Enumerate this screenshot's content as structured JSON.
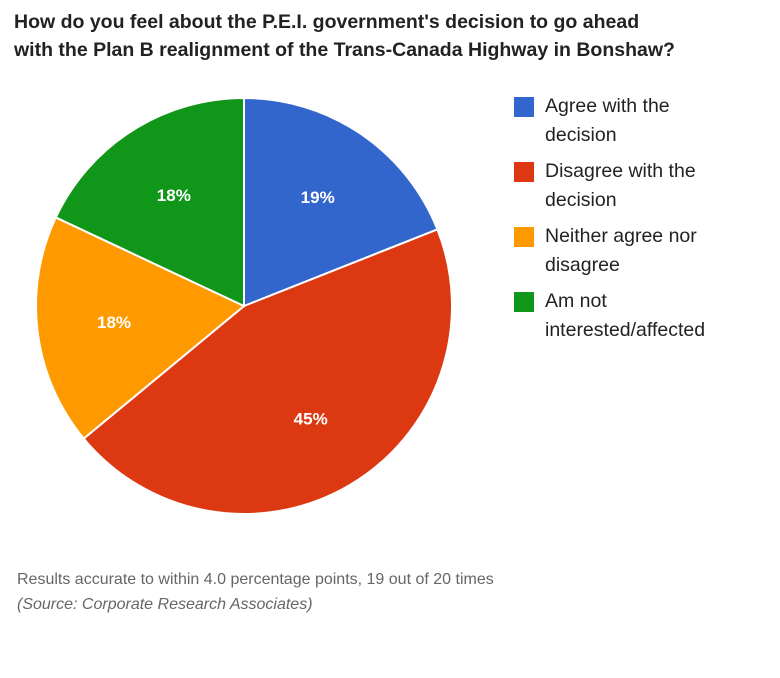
{
  "title_lines": [
    "How do you feel about the P.E.I. government's decision to go ahead",
    "with the Plan B realignment of the Trans-Canada Highway in Bonshaw?"
  ],
  "chart_data": {
    "type": "pie",
    "title": "How do you feel about the P.E.I. government's decision to go ahead with the Plan B realignment of the Trans-Canada Highway in Bonshaw?",
    "slices": [
      {
        "label": "Agree with the decision",
        "legend_lines": [
          "Agree with the",
          "decision"
        ],
        "value": 19,
        "display": "19%",
        "color": "#3366cc"
      },
      {
        "label": "Disagree with the decision",
        "legend_lines": [
          "Disagree with the",
          "decision"
        ],
        "value": 45,
        "display": "45%",
        "color": "#dc3912"
      },
      {
        "label": "Neither agree nor disagree",
        "legend_lines": [
          "Neither agree nor",
          "disagree"
        ],
        "value": 18,
        "display": "18%",
        "color": "#ff9900"
      },
      {
        "label": "Am not interested/affected",
        "legend_lines": [
          "Am not",
          "interested/affected"
        ],
        "value": 18,
        "display": "18%",
        "color": "#109618"
      }
    ],
    "legend_position": "right"
  },
  "footer": {
    "note": "Results accurate to within 4.0 percentage points, 19 out of 20 times",
    "source": "(Source: Corporate Research Associates)"
  }
}
